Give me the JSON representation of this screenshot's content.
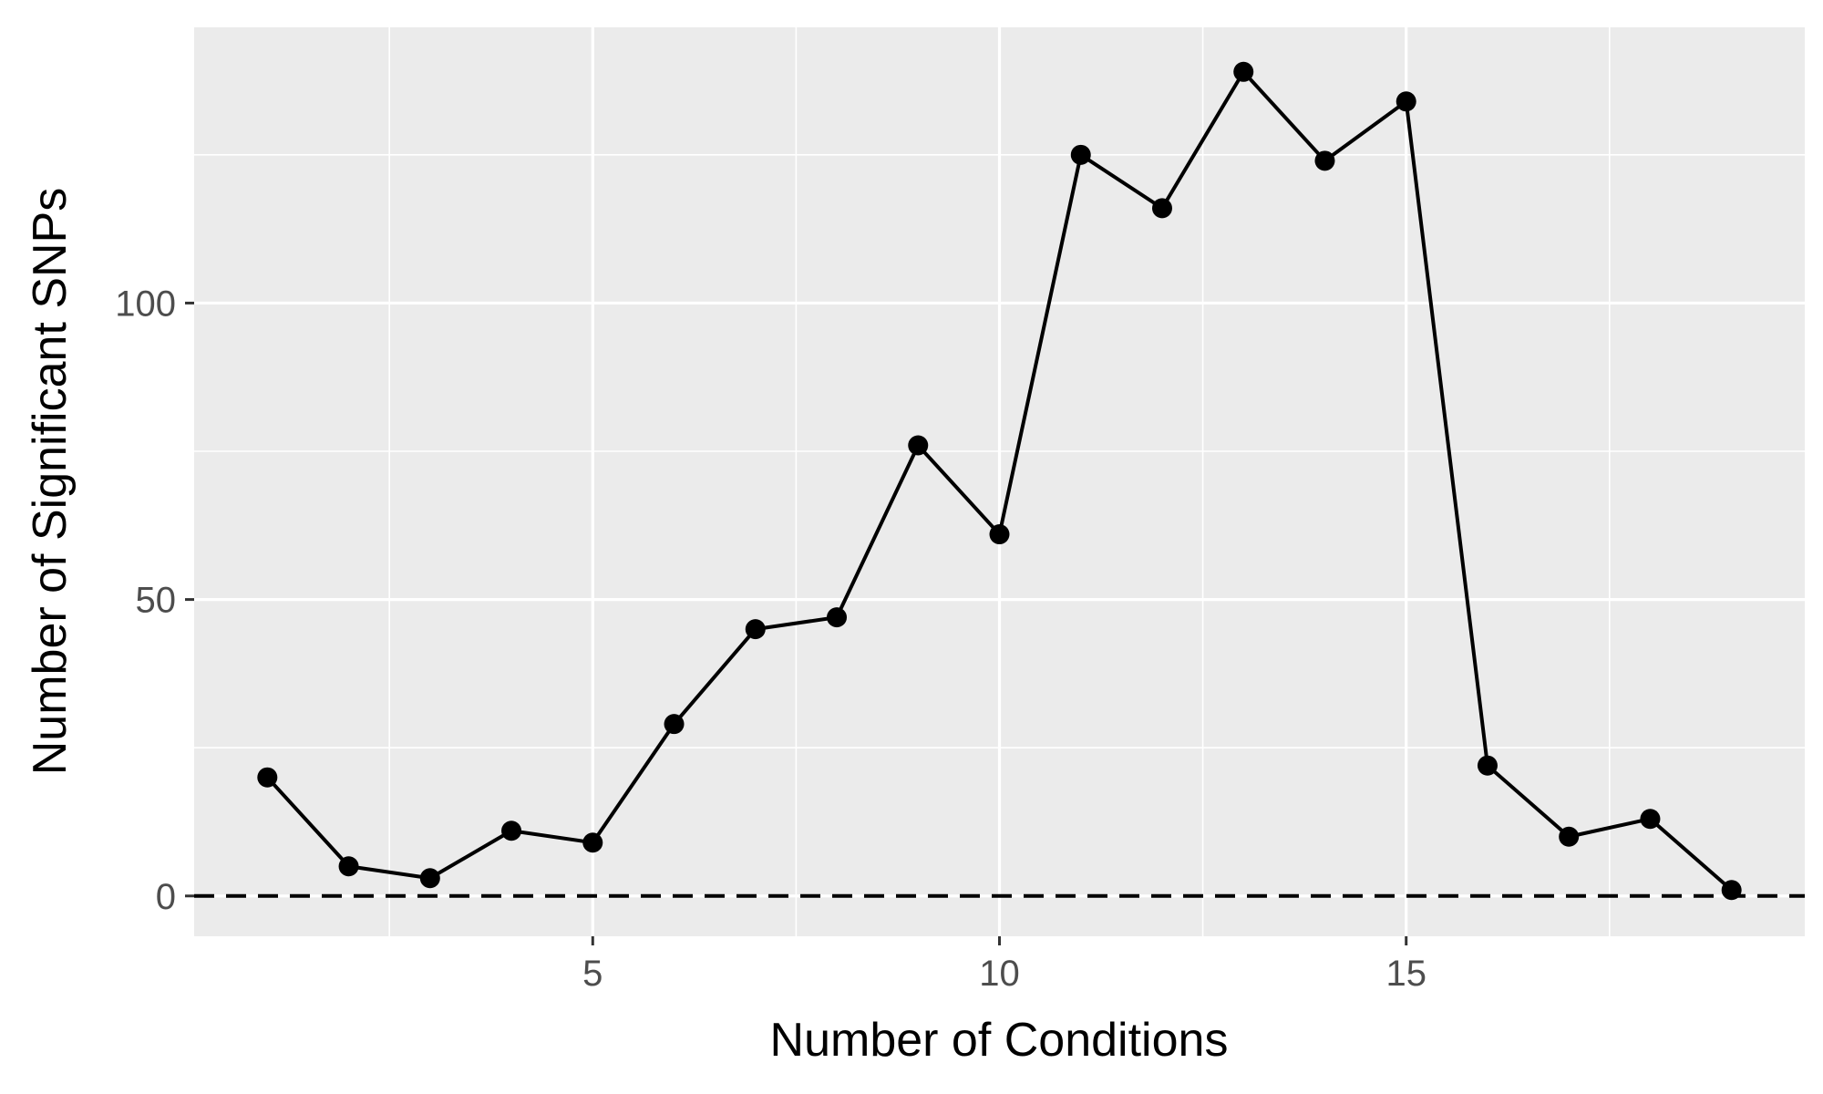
{
  "chart_data": {
    "type": "line",
    "title": "",
    "xlabel": "Number of Conditions",
    "ylabel": "Number of Significant SNPs",
    "xlim": [
      0.1,
      19.9
    ],
    "ylim": [
      -6.8,
      146.5
    ],
    "x_ticks": [
      5,
      10,
      15
    ],
    "x_tick_labels": [
      "5",
      "10",
      "15"
    ],
    "x_minor_gridlines": [
      2.5,
      7.5,
      12.5,
      17.5
    ],
    "y_ticks": [
      0,
      50,
      100
    ],
    "y_tick_labels": [
      "0",
      "50",
      "100"
    ],
    "y_minor_gridlines": [
      25,
      75,
      125
    ],
    "grid": true,
    "reference_line": {
      "y": 0,
      "style": "dashed",
      "color": "#000000"
    },
    "panel_background": "#ebebeb",
    "gridline_color": "#ffffff",
    "line_color": "#000000",
    "point_color": "#000000",
    "series": [
      {
        "x": [
          1,
          2,
          3,
          4,
          5,
          6,
          7,
          8,
          9,
          10,
          11,
          12,
          13,
          14,
          15,
          16,
          17,
          18,
          19
        ],
        "values": [
          20,
          5,
          3,
          11,
          9,
          29,
          45,
          47,
          76,
          61,
          125,
          116,
          139,
          124,
          134,
          22,
          10,
          13,
          1
        ]
      }
    ]
  }
}
